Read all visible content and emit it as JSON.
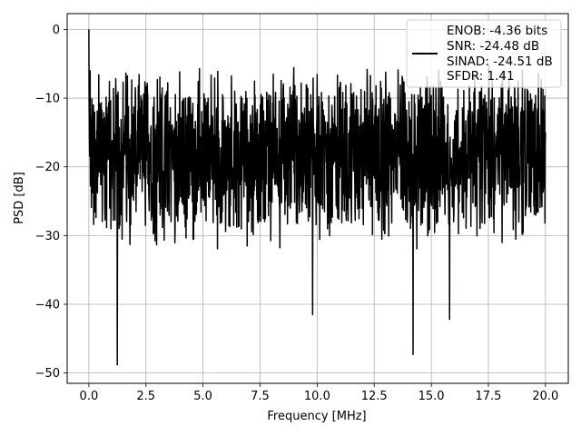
{
  "chart_data": {
    "type": "line",
    "title": "",
    "xlabel": "Frequency [MHz]",
    "ylabel": "PSD [dB]",
    "xlim": [
      -0.95,
      21.0
    ],
    "ylim": [
      -51.5,
      2.3
    ],
    "xticks": [
      0.0,
      2.5,
      5.0,
      7.5,
      10.0,
      12.5,
      15.0,
      17.5,
      20.0
    ],
    "xtick_labels": [
      "0.0",
      "2.5",
      "5.0",
      "7.5",
      "10.0",
      "12.5",
      "15.0",
      "17.5",
      "20.0"
    ],
    "yticks": [
      0,
      -10,
      -20,
      -30,
      -40,
      -50
    ],
    "ytick_labels": [
      "0",
      "−10",
      "−20",
      "−30",
      "−40",
      "−50"
    ],
    "grid": true,
    "legend_position": "top-right",
    "series": [
      {
        "name": "",
        "color": "#000000",
        "x_range": [
          0.0,
          20.0
        ],
        "description_points": [
          {
            "x": 0.0,
            "y": 0.0
          },
          {
            "x": 0.05,
            "y": -6.0
          },
          {
            "x": 0.2,
            "y": -11.0
          },
          {
            "x": 1.25,
            "y": -48.8
          },
          {
            "x": 9.8,
            "y": -41.5
          },
          {
            "x": 14.2,
            "y": -47.3
          },
          {
            "x": 15.8,
            "y": -42.2
          },
          {
            "x": 20.0,
            "y": -15.0
          }
        ],
        "noise_band": {
          "upper": [
            -14,
            -5
          ],
          "lower": [
            -33,
            -25
          ]
        }
      }
    ],
    "legend_lines": [
      "ENOB: -4.36 bits",
      "SNR: -24.48 dB",
      "SINAD: -24.51 dB",
      "SFDR: 1.41"
    ]
  }
}
